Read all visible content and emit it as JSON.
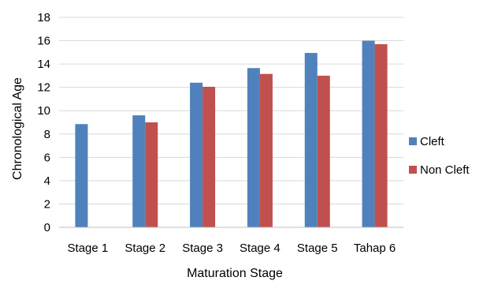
{
  "chart_data": {
    "type": "bar",
    "title": "",
    "xlabel": "Maturation Stage",
    "ylabel": "Chronological Age",
    "categories": [
      "Stage 1",
      "Stage 2",
      "Stage 3",
      "Stage 4",
      "Stage 5",
      "Tahap 6"
    ],
    "series": [
      {
        "name": "Cleft",
        "values": [
          8.85,
          9.6,
          12.4,
          13.65,
          14.95,
          16.0
        ],
        "color": "#4f81bd"
      },
      {
        "name": "Non Cleft",
        "values": [
          null,
          9.0,
          12.05,
          13.15,
          13.0,
          15.7
        ],
        "color": "#c0504d"
      }
    ],
    "ylim": [
      0,
      18
    ],
    "yticks": [
      0,
      2,
      4,
      6,
      8,
      10,
      12,
      14,
      16,
      18
    ],
    "grid": true,
    "legend_position": "right"
  }
}
